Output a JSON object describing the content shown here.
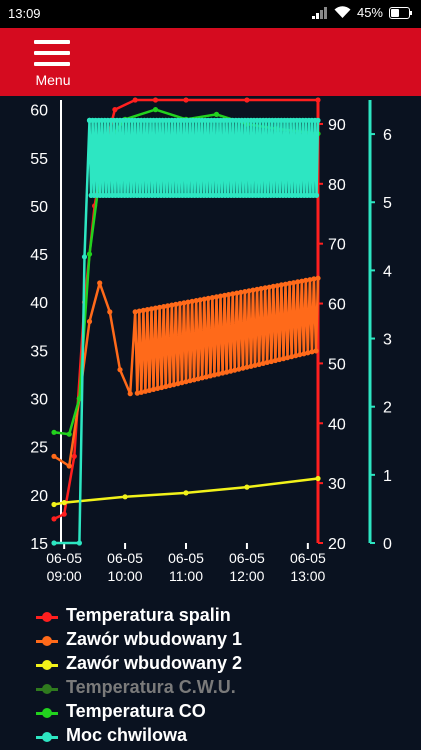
{
  "status_bar": {
    "time": "13:09",
    "battery": "45%"
  },
  "app_bar": {
    "menu_label": "Menu"
  },
  "colors": {
    "app_bar": "#d50b1f",
    "background": "#0a1220",
    "spalin": "#ff1f1f",
    "zawor1": "#ff6a1a",
    "zawor2": "#f2f21a",
    "cwu": "#2f7a1e",
    "co": "#22d21e",
    "moc": "#2de6c2"
  },
  "legend": [
    {
      "label": "Temperatura spalin",
      "color_key": "spalin",
      "dimmed": false
    },
    {
      "label": "Zawór wbudowany 1",
      "color_key": "zawor1",
      "dimmed": false
    },
    {
      "label": "Zawór wbudowany 2",
      "color_key": "zawor2",
      "dimmed": false
    },
    {
      "label": "Temperatura C.W.U.",
      "color_key": "cwu",
      "dimmed": true
    },
    {
      "label": "Temperatura CO",
      "color_key": "co",
      "dimmed": false
    },
    {
      "label": "Moc chwilowa",
      "color_key": "moc",
      "dimmed": false
    }
  ],
  "chart_data": {
    "type": "line",
    "x_range": [
      "06-05 08:50",
      "06-05 13:10"
    ],
    "x_ticks": [
      {
        "date": "06-05",
        "time": "09:00"
      },
      {
        "date": "06-05",
        "time": "10:00"
      },
      {
        "date": "06-05",
        "time": "11:00"
      },
      {
        "date": "06-05",
        "time": "12:00"
      },
      {
        "date": "06-05",
        "time": "13:00"
      }
    ],
    "axes": {
      "left": {
        "min": 15,
        "max": 61,
        "ticks": [
          15,
          20,
          25,
          30,
          35,
          40,
          45,
          50,
          55,
          60
        ],
        "color": "#ffffff"
      },
      "right1": {
        "min": 20,
        "max": 94,
        "ticks": [
          20,
          30,
          40,
          50,
          60,
          70,
          80,
          90
        ],
        "color": "#ff1f1f"
      },
      "right2": {
        "min": 0,
        "max": 6.5,
        "ticks": [
          0,
          1,
          2,
          3,
          4,
          5,
          6
        ],
        "color": "#2de6c2"
      }
    },
    "grid": false,
    "legend_position": "bottom",
    "series": [
      {
        "name": "Temperatura spalin",
        "axis": "left",
        "color_key": "spalin",
        "points": [
          [
            "06-05 08:50",
            17.5
          ],
          [
            "06-05 09:00",
            18
          ],
          [
            "06-05 09:10",
            24
          ],
          [
            "06-05 09:20",
            40
          ],
          [
            "06-05 09:30",
            50
          ],
          [
            "06-05 09:40",
            56
          ],
          [
            "06-05 09:50",
            60
          ],
          [
            "06-05 10:10",
            61
          ],
          [
            "06-05 10:30",
            61
          ],
          [
            "06-05 11:00",
            61
          ],
          [
            "06-05 12:00",
            61
          ],
          [
            "06-05 13:10",
            61
          ]
        ]
      },
      {
        "name": "Zawór wbudowany 1",
        "axis": "left",
        "color_key": "zawor1",
        "oscillation": {
          "from": "06-05 10:10",
          "to": "06-05 13:10",
          "period_minutes": 4,
          "low_start": 30.5,
          "low_end": 35,
          "high_start": 39,
          "high_end": 42.5
        },
        "points": [
          [
            "06-05 08:50",
            24
          ],
          [
            "06-05 09:05",
            23
          ],
          [
            "06-05 09:15",
            30
          ],
          [
            "06-05 09:25",
            38
          ],
          [
            "06-05 09:35",
            42
          ],
          [
            "06-05 09:45",
            39
          ],
          [
            "06-05 09:55",
            33
          ],
          [
            "06-05 10:05",
            30.5
          ]
        ]
      },
      {
        "name": "Zawór wbudowany 2",
        "axis": "left",
        "color_key": "zawor2",
        "points": [
          [
            "06-05 08:50",
            19
          ],
          [
            "06-05 09:00",
            19.2
          ],
          [
            "06-05 10:00",
            19.8
          ],
          [
            "06-05 11:00",
            20.2
          ],
          [
            "06-05 12:00",
            20.8
          ],
          [
            "06-05 13:10",
            21.7
          ]
        ]
      },
      {
        "name": "Temperatura CO",
        "axis": "left",
        "color_key": "co",
        "points": [
          [
            "06-05 08:50",
            26.5
          ],
          [
            "06-05 09:05",
            26.3
          ],
          [
            "06-05 09:15",
            30
          ],
          [
            "06-05 09:25",
            45
          ],
          [
            "06-05 09:35",
            53
          ],
          [
            "06-05 09:45",
            57
          ],
          [
            "06-05 10:00",
            59
          ],
          [
            "06-05 10:30",
            60
          ],
          [
            "06-05 11:00",
            59
          ],
          [
            "06-05 11:30",
            59.5
          ],
          [
            "06-05 12:00",
            58.5
          ],
          [
            "06-05 12:30",
            58
          ],
          [
            "06-05 13:10",
            57.5
          ]
        ]
      },
      {
        "name": "Moc chwilowa",
        "axis": "right2",
        "color_key": "moc",
        "oscillation": {
          "from": "06-05 09:25",
          "to": "06-05 13:10",
          "period_minutes": 3,
          "low": 5.1,
          "high": 6.2
        },
        "points": [
          [
            "06-05 08:50",
            0
          ],
          [
            "06-05 09:15",
            0
          ],
          [
            "06-05 09:20",
            4.2
          ],
          [
            "06-05 09:25",
            6.2
          ]
        ]
      }
    ]
  }
}
